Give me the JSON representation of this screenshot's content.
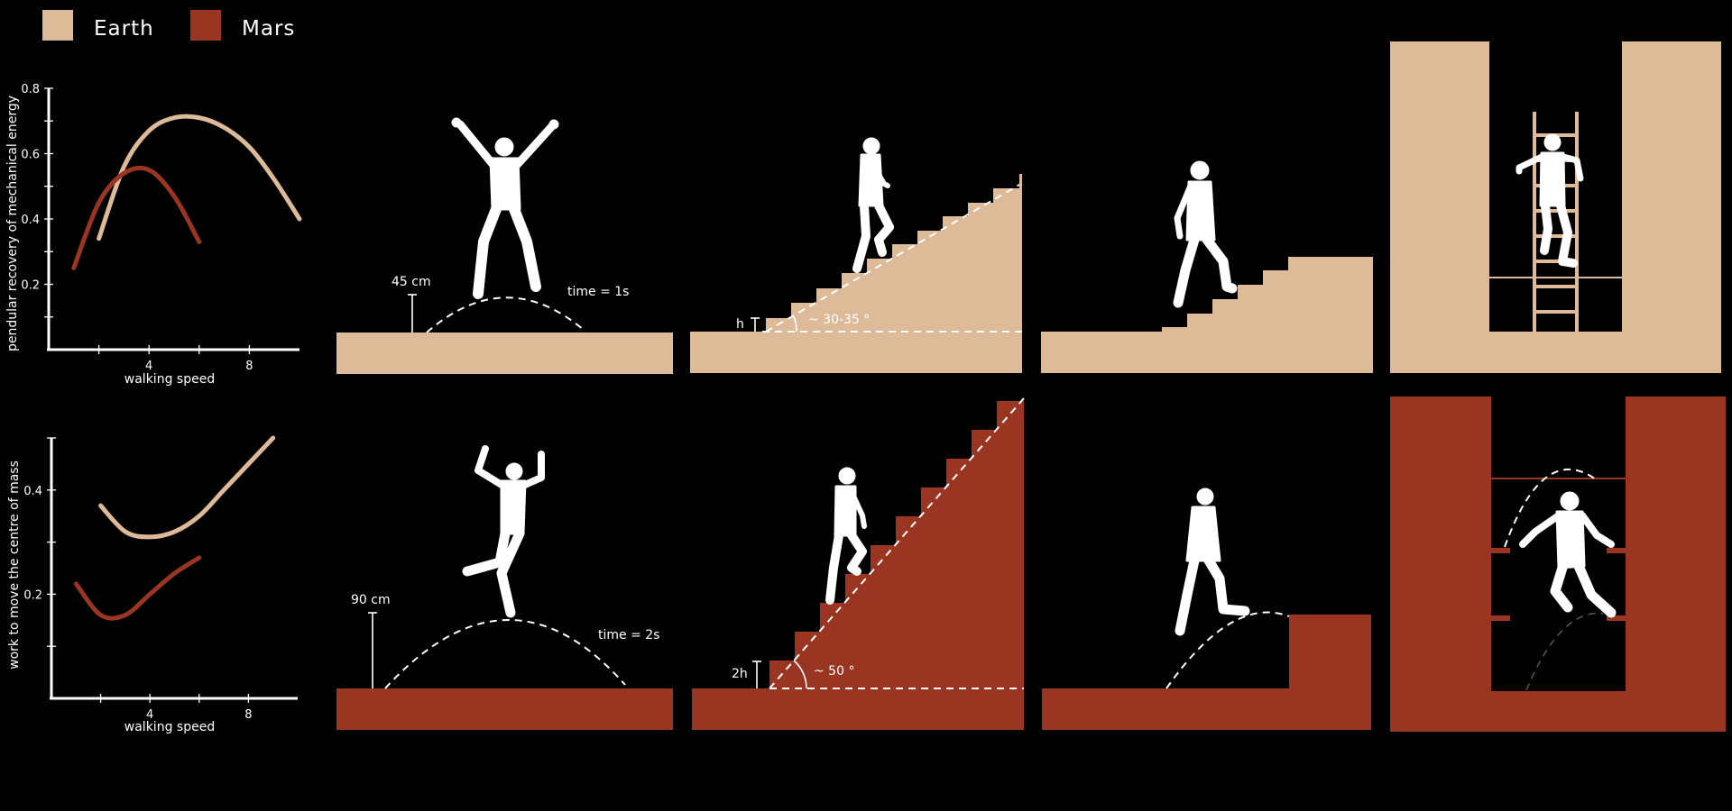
{
  "colors": {
    "earth": "#DDBA98",
    "mars": "#9A3522",
    "background": "#000000",
    "figure": "#FFFFFF"
  },
  "legend": {
    "earth_label": "Earth",
    "mars_label": "Mars"
  },
  "annotations": {
    "earth_jump_height": "45 cm",
    "earth_jump_time": "time = 1s",
    "mars_jump_height": "90 cm",
    "mars_jump_time": "time = 2s",
    "earth_step_height": "h",
    "earth_stair_angle": "~ 30-35 °",
    "mars_step_height": "2h",
    "mars_stair_angle": "~ 50 °"
  },
  "chart_data": [
    {
      "type": "line",
      "title": "",
      "xlabel": "walking speed",
      "ylabel": "pendular recovery of mechanical energy",
      "xlim": [
        0,
        10
      ],
      "ylim": [
        0,
        0.8
      ],
      "x_ticks": [
        "4",
        "8"
      ],
      "y_ticks": [
        "0.2",
        "0.4",
        "0.6",
        "0.8"
      ],
      "grid": false,
      "series": [
        {
          "name": "Earth",
          "color": "#DDBA98",
          "x": [
            2,
            3,
            4,
            5,
            6,
            7,
            8,
            9,
            10
          ],
          "y": [
            0.34,
            0.56,
            0.67,
            0.71,
            0.71,
            0.68,
            0.62,
            0.52,
            0.4
          ]
        },
        {
          "name": "Mars",
          "color": "#9A3522",
          "x": [
            1,
            2,
            3,
            4,
            5,
            6
          ],
          "y": [
            0.25,
            0.45,
            0.54,
            0.55,
            0.47,
            0.33
          ]
        }
      ]
    },
    {
      "type": "line",
      "title": "",
      "xlabel": "walking speed",
      "ylabel": "work to move the centre of mass",
      "xlim": [
        0,
        10
      ],
      "ylim": [
        0,
        0.5
      ],
      "x_ticks": [
        "4",
        "8"
      ],
      "y_ticks": [
        "0.2",
        "0.4"
      ],
      "grid": false,
      "series": [
        {
          "name": "Earth",
          "color": "#DDBA98",
          "x": [
            2,
            3,
            4,
            5,
            6,
            7,
            8,
            9
          ],
          "y": [
            0.37,
            0.32,
            0.31,
            0.32,
            0.35,
            0.4,
            0.45,
            0.5
          ]
        },
        {
          "name": "Mars",
          "color": "#9A3522",
          "x": [
            1,
            2,
            3,
            4,
            5,
            6
          ],
          "y": [
            0.22,
            0.16,
            0.16,
            0.2,
            0.24,
            0.27
          ]
        }
      ]
    }
  ]
}
